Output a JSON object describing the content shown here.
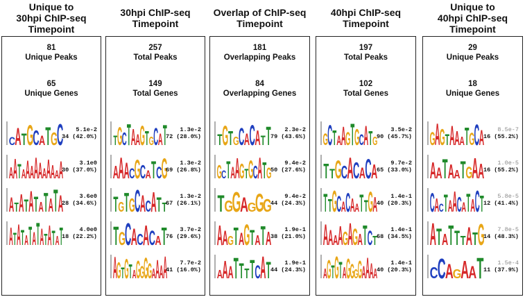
{
  "columns": [
    {
      "title": "Unique to\n30hpi ChIP-seq\nTimepoint",
      "stat1_value": "81",
      "stat1_label": "Unique Peaks",
      "stat2_value": "65",
      "stat2_label": "Unique Genes",
      "motifs": [
        {
          "pvalue": "5.1e-2",
          "count": "34 (42.0%)",
          "seq": "CATGCATGC",
          "grey": false
        },
        {
          "pvalue": "3.1e0",
          "count": "30 (37.0%)",
          "seq": "AATAAAAAAAAAA",
          "grey": false
        },
        {
          "pvalue": "3.6e0",
          "count": "28 (34.6%)",
          "seq": "ATATATATATA",
          "grey": false
        },
        {
          "pvalue": "4.0e0",
          "count": "18 (22.2%)",
          "seq": "ATATATATATATAT",
          "grey": false
        }
      ]
    },
    {
      "title": "30hpi ChIP-seq\nTimepoint",
      "stat1_value": "257",
      "stat1_label": "Total Peaks",
      "stat2_value": "149",
      "stat2_label": "Total Genes",
      "motifs": [
        {
          "pvalue": "1.3e-2",
          "count": "72 (28.0%)",
          "seq": "TGCTAAGTGCAT",
          "grey": false
        },
        {
          "pvalue": "1.3e-2",
          "count": "69 (26.8%)",
          "seq": "AAACGCATCG",
          "grey": false
        },
        {
          "pvalue": "1.3e-2",
          "count": "67 (26.1%)",
          "seq": "TGTGCACATT",
          "grey": false
        },
        {
          "pvalue": "3.7e-2",
          "count": "76 (29.6%)",
          "seq": "TGCACACAT",
          "grey": false
        },
        {
          "pvalue": "7.7e-2",
          "count": "41 (16.0%)",
          "seq": "AGTGTAGGGGAAAA",
          "grey": false
        }
      ]
    },
    {
      "title": "Overlap of ChIP-seq\nTimepoint",
      "stat1_value": "181",
      "stat1_label": "Overlapping Peaks",
      "stat2_value": "84",
      "stat2_label": "Overlapping Genes",
      "motifs": [
        {
          "pvalue": "2.3e-2",
          "count": "79 (43.6%)",
          "seq": "TGTGCACATT",
          "grey": false
        },
        {
          "pvalue": "9.4e-2",
          "count": "50 (27.6%)",
          "seq": "GCTAAGTGCATG",
          "grey": false
        },
        {
          "pvalue": "9.4e-2",
          "count": "44 (24.3%)",
          "seq": "TGGAGGG",
          "grey": false
        },
        {
          "pvalue": "1.9e-1",
          "count": "38 (21.0%)",
          "seq": "AAGTAGTATA",
          "grey": false
        },
        {
          "pvalue": "1.9e-1",
          "count": "44 (24.3%)",
          "seq": "AAATTTTCAT",
          "grey": false
        }
      ]
    },
    {
      "title": "40hpi ChIP-seq\nTimepoint",
      "stat1_value": "197",
      "stat1_label": "Total Peaks",
      "stat2_value": "102",
      "stat2_label": "Total Genes",
      "motifs": [
        {
          "pvalue": "3.5e-2",
          "count": "90 (45.7%)",
          "seq": "GCTAAGTGCATG",
          "grey": false
        },
        {
          "pvalue": "9.7e-2",
          "count": "65 (33.0%)",
          "seq": "TTGCACACA",
          "grey": false
        },
        {
          "pvalue": "1.4e-1",
          "count": "40 (20.3%)",
          "seq": "TTGCACAATTGA",
          "grey": false
        },
        {
          "pvalue": "1.4e-1",
          "count": "68 (34.5%)",
          "seq": "AAAAGAGATCT",
          "grey": false
        },
        {
          "pvalue": "1.4e-1",
          "count": "40 (20.3%)",
          "seq": "AGTGTAGGGGAAAA",
          "grey": false
        }
      ]
    },
    {
      "title": "Unique to\n40hpi ChIP-seq\nTimepoint",
      "stat1_value": "29",
      "stat1_label": "Unique Peaks",
      "stat2_value": "18",
      "stat2_label": "Unique Genes",
      "motifs": [
        {
          "pvalue": "8.5e-7",
          "count": "16 (55.2%)",
          "seq": "GAGTAAATGCA",
          "grey": true
        },
        {
          "pvalue": "1.0e-5",
          "count": "16 (55.2%)",
          "seq": "AATAATGAA",
          "grey": true
        },
        {
          "pvalue": "5.8e-5",
          "count": "12 (41.4%)",
          "seq": "CACTAACATACT",
          "grey": true
        },
        {
          "pvalue": "7.8e-5",
          "count": "14 (48.3%)",
          "seq": "ATATTTATG",
          "grey": true
        },
        {
          "pvalue": "1.5e-4",
          "count": "11 (37.9%)",
          "seq": "CCAGAAT",
          "grey": true
        }
      ]
    }
  ],
  "base_colors": {
    "A": "#d62728",
    "C": "#1f3fbf",
    "G": "#e8a617",
    "T": "#1f8a2a"
  }
}
